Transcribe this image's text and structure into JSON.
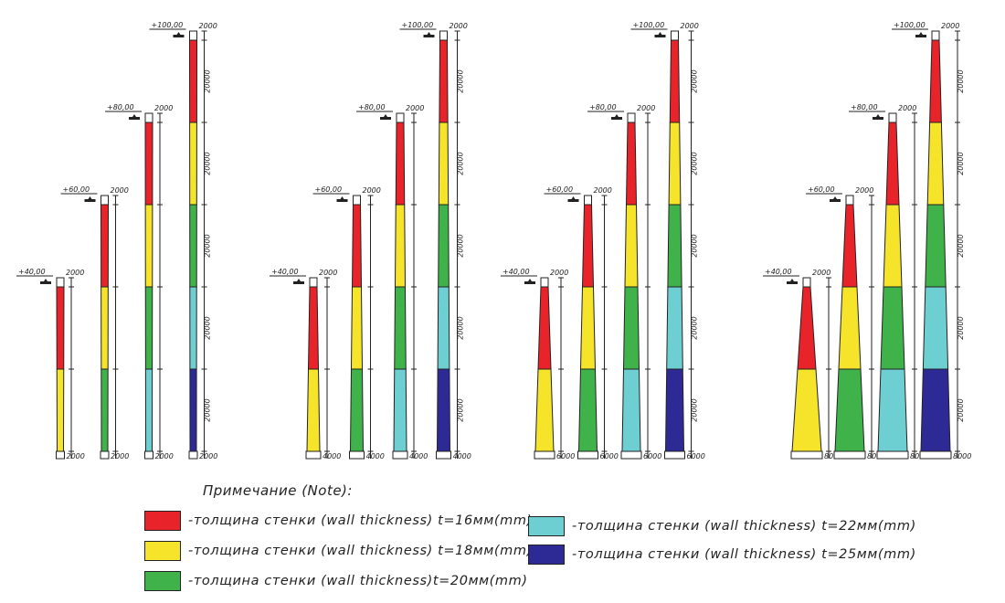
{
  "colors": {
    "t16": "#e8242a",
    "t18": "#f5e42a",
    "t20": "#3fb34a",
    "t22": "#6ecfd2",
    "t25": "#2e2a95"
  },
  "groups": [
    {
      "base_width_label": "2000",
      "towers": [
        {
          "height_label": "+40,00",
          "top_label": "2000",
          "segments": [
            "t16",
            "t18"
          ]
        },
        {
          "height_label": "+60,00",
          "top_label": "2000",
          "segments": [
            "t16",
            "t18",
            "t20"
          ]
        },
        {
          "height_label": "+80,00",
          "top_label": "2000",
          "segments": [
            "t16",
            "t18",
            "t20",
            "t22"
          ]
        },
        {
          "height_label": "+100,00",
          "top_label": "2000",
          "segments": [
            "t16",
            "t18",
            "t20",
            "t22",
            "t25"
          ]
        }
      ]
    },
    {
      "base_width_label": "4000",
      "towers": [
        {
          "height_label": "+40,00",
          "top_label": "2000",
          "segments": [
            "t16",
            "t18"
          ]
        },
        {
          "height_label": "+60,00",
          "top_label": "2000",
          "segments": [
            "t16",
            "t18",
            "t20"
          ]
        },
        {
          "height_label": "+80,00",
          "top_label": "2000",
          "segments": [
            "t16",
            "t18",
            "t20",
            "t22"
          ]
        },
        {
          "height_label": "+100,00",
          "top_label": "2000",
          "segments": [
            "t16",
            "t18",
            "t20",
            "t22",
            "t25"
          ]
        }
      ]
    },
    {
      "base_width_label": "6000",
      "towers": [
        {
          "height_label": "+40,00",
          "top_label": "2000",
          "segments": [
            "t16",
            "t18"
          ]
        },
        {
          "height_label": "+60,00",
          "top_label": "2000",
          "segments": [
            "t16",
            "t18",
            "t20"
          ]
        },
        {
          "height_label": "+80,00",
          "top_label": "2000",
          "segments": [
            "t16",
            "t18",
            "t20",
            "t22"
          ]
        },
        {
          "height_label": "+100,00",
          "top_label": "2000",
          "segments": [
            "t16",
            "t18",
            "t20",
            "t22",
            "t25"
          ]
        }
      ]
    },
    {
      "base_width_label": "8000",
      "towers": [
        {
          "height_label": "+40,00",
          "top_label": "2000",
          "segments": [
            "t16",
            "t18"
          ]
        },
        {
          "height_label": "+60,00",
          "top_label": "2000",
          "segments": [
            "t16",
            "t18",
            "t20"
          ]
        },
        {
          "height_label": "+80,00",
          "top_label": "2000",
          "segments": [
            "t16",
            "t18",
            "t20",
            "t22"
          ]
        },
        {
          "height_label": "+100,00",
          "top_label": "2000",
          "segments": [
            "t16",
            "t18",
            "t20",
            "t22",
            "t25"
          ]
        }
      ]
    }
  ],
  "segment_dim_label": "20000",
  "note": {
    "title": "Примечание (Note):",
    "items": [
      {
        "key": "t16",
        "text": "-толщина стенки (wall thickness) t=16мм(mm)"
      },
      {
        "key": "t18",
        "text": "-толщина стенки (wall thickness) t=18мм(mm)"
      },
      {
        "key": "t20",
        "text": "-толщина стенки (wall thickness)t=20мм(mm)"
      },
      {
        "key": "t22",
        "text": "-толщина стенки (wall thickness) t=22мм(mm)"
      },
      {
        "key": "t25",
        "text": "-толщина стенки (wall thickness) t=25мм(mm)"
      }
    ]
  }
}
